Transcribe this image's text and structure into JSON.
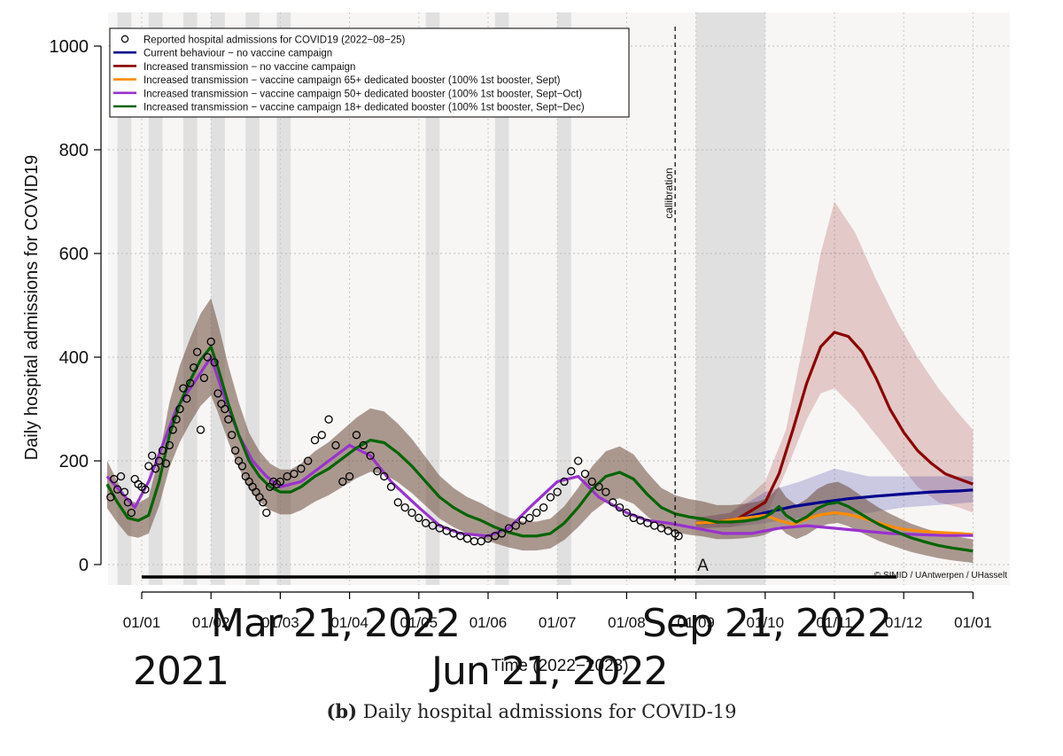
{
  "chart_data": {
    "type": "line",
    "title": "",
    "xlabel": "Time (2022−2023)",
    "ylabel": "Daily hospital admissions for COVID19",
    "ylim": [
      0,
      1000
    ],
    "yticks": [
      0,
      200,
      400,
      600,
      800,
      1000
    ],
    "xticks": [
      "01/01",
      "01/02",
      "01/03",
      "01/04",
      "01/05",
      "01/06",
      "01/07",
      "01/08",
      "01/09",
      "01/10",
      "01/11",
      "01/12",
      "01/01"
    ],
    "x_unit": "month index (0 = 01/01/2022)",
    "xlim": [
      -0.55,
      12.15
    ],
    "grid": true,
    "legend_position": "top-left",
    "shaded_periods": [
      [
        -0.35,
        -0.15
      ],
      [
        0.1,
        0.3
      ],
      [
        0.6,
        0.8
      ],
      [
        1.0,
        1.2
      ],
      [
        1.5,
        1.7
      ],
      [
        1.95,
        2.15
      ],
      [
        4.1,
        4.3
      ],
      [
        5.1,
        5.3
      ],
      [
        6.0,
        6.2
      ],
      [
        8.0,
        9.0
      ]
    ],
    "calibration_line": {
      "x": 7.7,
      "label": "callibration"
    },
    "segment_label": {
      "text": "A",
      "x": 8.1
    },
    "watermark": "© SIMID / UAntwerpen / UHasselt",
    "series": [
      {
        "name": "Reported hospital admissions for COVID19 (2022−08−25)",
        "color": "#000000",
        "style": "points",
        "x": [
          -0.45,
          -0.4,
          -0.35,
          -0.3,
          -0.25,
          -0.2,
          -0.15,
          -0.1,
          -0.05,
          0.0,
          0.05,
          0.1,
          0.15,
          0.2,
          0.25,
          0.3,
          0.35,
          0.4,
          0.45,
          0.5,
          0.55,
          0.6,
          0.65,
          0.7,
          0.75,
          0.8,
          0.85,
          0.9,
          0.95,
          1.0,
          1.05,
          1.1,
          1.15,
          1.2,
          1.25,
          1.3,
          1.35,
          1.4,
          1.45,
          1.5,
          1.55,
          1.6,
          1.65,
          1.7,
          1.75,
          1.8,
          1.85,
          1.9,
          1.95,
          2.0,
          2.1,
          2.2,
          2.3,
          2.4,
          2.5,
          2.6,
          2.7,
          2.8,
          2.9,
          3.0,
          3.1,
          3.2,
          3.3,
          3.4,
          3.5,
          3.6,
          3.7,
          3.8,
          3.9,
          4.0,
          4.1,
          4.2,
          4.3,
          4.4,
          4.5,
          4.6,
          4.7,
          4.8,
          4.9,
          5.0,
          5.1,
          5.2,
          5.3,
          5.4,
          5.5,
          5.6,
          5.7,
          5.8,
          5.9,
          6.0,
          6.1,
          6.2,
          6.3,
          6.4,
          6.5,
          6.6,
          6.7,
          6.8,
          6.9,
          7.0,
          7.1,
          7.2,
          7.3,
          7.4,
          7.5,
          7.6,
          7.7,
          7.75
        ],
        "y": [
          130,
          165,
          145,
          170,
          140,
          120,
          100,
          165,
          155,
          150,
          145,
          190,
          210,
          185,
          200,
          220,
          195,
          230,
          260,
          280,
          300,
          340,
          320,
          350,
          380,
          410,
          260,
          360,
          400,
          430,
          390,
          330,
          310,
          300,
          280,
          250,
          220,
          200,
          190,
          170,
          160,
          150,
          140,
          130,
          120,
          100,
          150,
          160,
          155,
          160,
          170,
          175,
          185,
          200,
          240,
          250,
          280,
          230,
          160,
          170,
          250,
          230,
          210,
          180,
          170,
          150,
          120,
          110,
          100,
          90,
          80,
          75,
          70,
          65,
          60,
          55,
          50,
          45,
          45,
          50,
          55,
          60,
          70,
          75,
          85,
          90,
          100,
          110,
          130,
          140,
          160,
          180,
          200,
          175,
          160,
          150,
          140,
          120,
          110,
          100,
          90,
          85,
          80,
          75,
          70,
          65,
          60,
          55
        ]
      },
      {
        "name": "Current behaviour − no vaccine campaign",
        "color": "#00008b",
        "style": "line",
        "x": [
          8.0,
          8.3,
          8.6,
          9.0,
          9.4,
          9.8,
          10.2,
          10.6,
          11.0,
          11.4,
          11.8,
          12.0
        ],
        "y": [
          80,
          82,
          88,
          100,
          112,
          120,
          127,
          132,
          136,
          140,
          142,
          144
        ]
      },
      {
        "name": "Increased transmission − no vaccine campaign",
        "color": "#8b0000",
        "style": "line",
        "x": [
          8.0,
          8.3,
          8.6,
          9.0,
          9.2,
          9.4,
          9.6,
          9.8,
          10.0,
          10.2,
          10.4,
          10.6,
          10.8,
          11.0,
          11.2,
          11.4,
          11.6,
          11.8,
          12.0
        ],
        "y": [
          80,
          82,
          88,
          120,
          175,
          260,
          350,
          420,
          448,
          440,
          410,
          360,
          300,
          255,
          220,
          195,
          175,
          165,
          155
        ]
      },
      {
        "name": "Increased transmission − vaccine campaign 65+ dedicated booster (100% 1st booster, Sept)",
        "color": "#ff8c00",
        "style": "line",
        "x": [
          8.0,
          8.3,
          8.6,
          9.0,
          9.2,
          9.4,
          9.6,
          9.8,
          10.0,
          10.2,
          10.4,
          10.6,
          10.8,
          11.0,
          11.2,
          11.5,
          11.8,
          12.0
        ],
        "y": [
          80,
          82,
          88,
          95,
          85,
          78,
          88,
          96,
          100,
          97,
          90,
          82,
          74,
          68,
          65,
          62,
          60,
          58
        ]
      },
      {
        "name": "Increased transmission − vaccine campaign 50+ dedicated booster (100% 1st booster, Sept−Oct)",
        "color": "#9932cc",
        "style": "line",
        "x": [
          -0.5,
          -0.3,
          -0.1,
          0.1,
          0.3,
          0.5,
          0.7,
          0.9,
          1.0,
          1.2,
          1.4,
          1.6,
          1.8,
          2.0,
          2.3,
          2.6,
          3.0,
          3.3,
          3.6,
          4.0,
          4.3,
          4.6,
          5.0,
          5.3,
          5.6,
          6.0,
          6.3,
          6.6,
          7.0,
          7.3,
          7.6,
          8.0,
          8.4,
          8.8,
          9.2,
          9.6,
          10.0,
          10.4,
          10.8,
          11.2,
          11.6,
          12.0
        ],
        "y": [
          170,
          140,
          110,
          160,
          230,
          300,
          340,
          380,
          400,
          320,
          250,
          200,
          170,
          150,
          160,
          190,
          230,
          210,
          160,
          110,
          75,
          60,
          55,
          70,
          110,
          160,
          170,
          130,
          100,
          85,
          80,
          70,
          60,
          60,
          70,
          75,
          70,
          65,
          60,
          58,
          56,
          56
        ]
      },
      {
        "name": "Increased transmission − vaccine campaign 18+ dedicated booster (100% 1st booster, Sept−Dec)",
        "color": "#006400",
        "style": "line",
        "x": [
          -0.5,
          -0.35,
          -0.2,
          -0.05,
          0.1,
          0.25,
          0.4,
          0.55,
          0.7,
          0.85,
          1.0,
          1.1,
          1.25,
          1.4,
          1.55,
          1.7,
          1.85,
          2.0,
          2.15,
          2.3,
          2.5,
          2.7,
          2.9,
          3.1,
          3.3,
          3.5,
          3.7,
          3.9,
          4.1,
          4.3,
          4.5,
          4.7,
          4.9,
          5.1,
          5.3,
          5.5,
          5.7,
          5.9,
          6.1,
          6.3,
          6.5,
          6.7,
          6.9,
          7.1,
          7.3,
          7.5,
          7.7,
          7.9,
          8.1,
          8.3,
          8.5,
          8.7,
          8.9,
          9.0,
          9.1,
          9.2,
          9.3,
          9.45,
          9.6,
          9.75,
          9.9,
          10.05,
          10.2,
          10.35,
          10.5,
          10.65,
          10.8,
          10.95,
          11.1,
          11.3,
          11.5,
          11.7,
          11.9,
          12.0
        ],
        "y": [
          155,
          120,
          90,
          85,
          95,
          160,
          250,
          310,
          355,
          395,
          420,
          380,
          310,
          250,
          200,
          170,
          150,
          140,
          140,
          150,
          170,
          185,
          205,
          225,
          240,
          235,
          215,
          190,
          160,
          130,
          110,
          95,
          85,
          72,
          62,
          55,
          55,
          60,
          80,
          110,
          145,
          170,
          178,
          165,
          135,
          110,
          98,
          92,
          88,
          82,
          82,
          84,
          88,
          92,
          100,
          112,
          95,
          82,
          92,
          108,
          117,
          120,
          112,
          100,
          88,
          77,
          68,
          60,
          52,
          44,
          37,
          32,
          28,
          26
        ]
      }
    ],
    "bands": [
      {
        "name": "Increased transmission − no vaccine campaign",
        "color": "#8b0000",
        "x": [
          8.0,
          8.5,
          9.0,
          9.3,
          9.6,
          9.8,
          10.0,
          10.3,
          10.6,
          10.9,
          11.2,
          11.5,
          11.8,
          12.0
        ],
        "lower": [
          70,
          72,
          90,
          180,
          280,
          330,
          340,
          300,
          250,
          200,
          150,
          120,
          110,
          100
        ],
        "upper": [
          90,
          100,
          160,
          260,
          460,
          600,
          700,
          640,
          550,
          470,
          400,
          340,
          290,
          260
        ]
      },
      {
        "name": "Current behaviour − no vaccine campaign",
        "color": "#00008b",
        "x": [
          8.0,
          8.5,
          9.0,
          9.5,
          10.0,
          10.5,
          11.0,
          11.5,
          12.0
        ],
        "lower": [
          70,
          72,
          80,
          90,
          95,
          100,
          110,
          115,
          120
        ],
        "upper": [
          90,
          100,
          140,
          160,
          185,
          170,
          170,
          170,
          170
        ]
      }
    ]
  },
  "overlay_text": {
    "date_1": "Mar 21, 2022",
    "date_2": "Sep 21, 2022",
    "date_3": "Jun 21, 2022",
    "date_4": "2021"
  },
  "caption": {
    "label": "(b)",
    "text": "Daily hospital admissions for COVID-19"
  }
}
